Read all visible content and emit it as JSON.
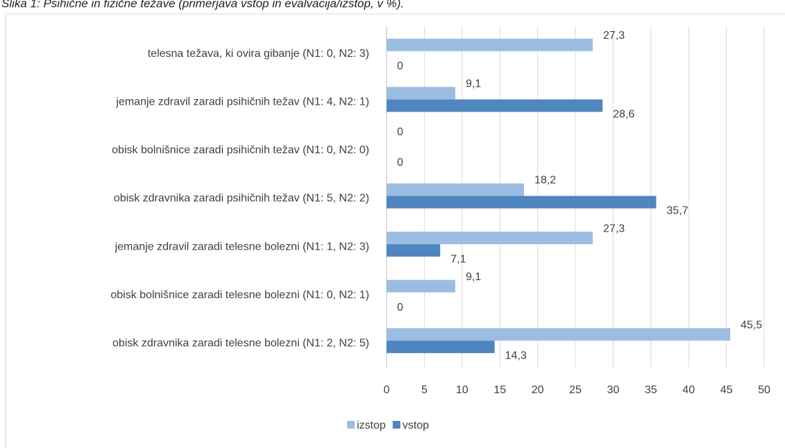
{
  "chart_data": {
    "type": "bar",
    "orientation": "horizontal",
    "title": "Slika 1: Psihične in fizične težave (primerjava vstop in evalvacija/izstop, v %).",
    "categories": [
      "telesna težava, ki ovira gibanje (N1: 0, N2: 3)",
      "jemanje zdravil zaradi psihičnih težav (N1: 4, N2: 1)",
      "obisk bolnišnice zaradi psihičnih težav (N1: 0, N2: 0)",
      "obisk zdravnika zaradi psihičnih težav (N1: 5, N2: 2)",
      "jemanje zdravil zaradi telesne bolezni (N1: 1, N2: 3)",
      "obisk bolnišnice zaradi telesne bolezni (N1: 0, N2: 1)",
      "obisk zdravnika zaradi telesne bolezni (N1: 2, N2: 5)"
    ],
    "series": [
      {
        "name": "izstop",
        "color": "#9cbde2",
        "values": [
          27.3,
          9.1,
          0,
          18.2,
          27.3,
          9.1,
          45.5
        ],
        "value_labels": [
          "27,3",
          "9,1",
          "0",
          "18,2",
          "27,3",
          "9,1",
          "45,5"
        ]
      },
      {
        "name": "vstop",
        "color": "#4f86bf",
        "values": [
          0,
          28.6,
          0,
          35.7,
          7.1,
          0,
          14.3
        ],
        "value_labels": [
          "0",
          "28,6",
          "0",
          "35,7",
          "7,1",
          "0",
          "14,3"
        ]
      }
    ],
    "xlim": [
      0,
      50
    ],
    "xticks": [
      0,
      5,
      10,
      15,
      20,
      25,
      30,
      35,
      40,
      45,
      50
    ],
    "grid": true,
    "legend": "bottom"
  }
}
